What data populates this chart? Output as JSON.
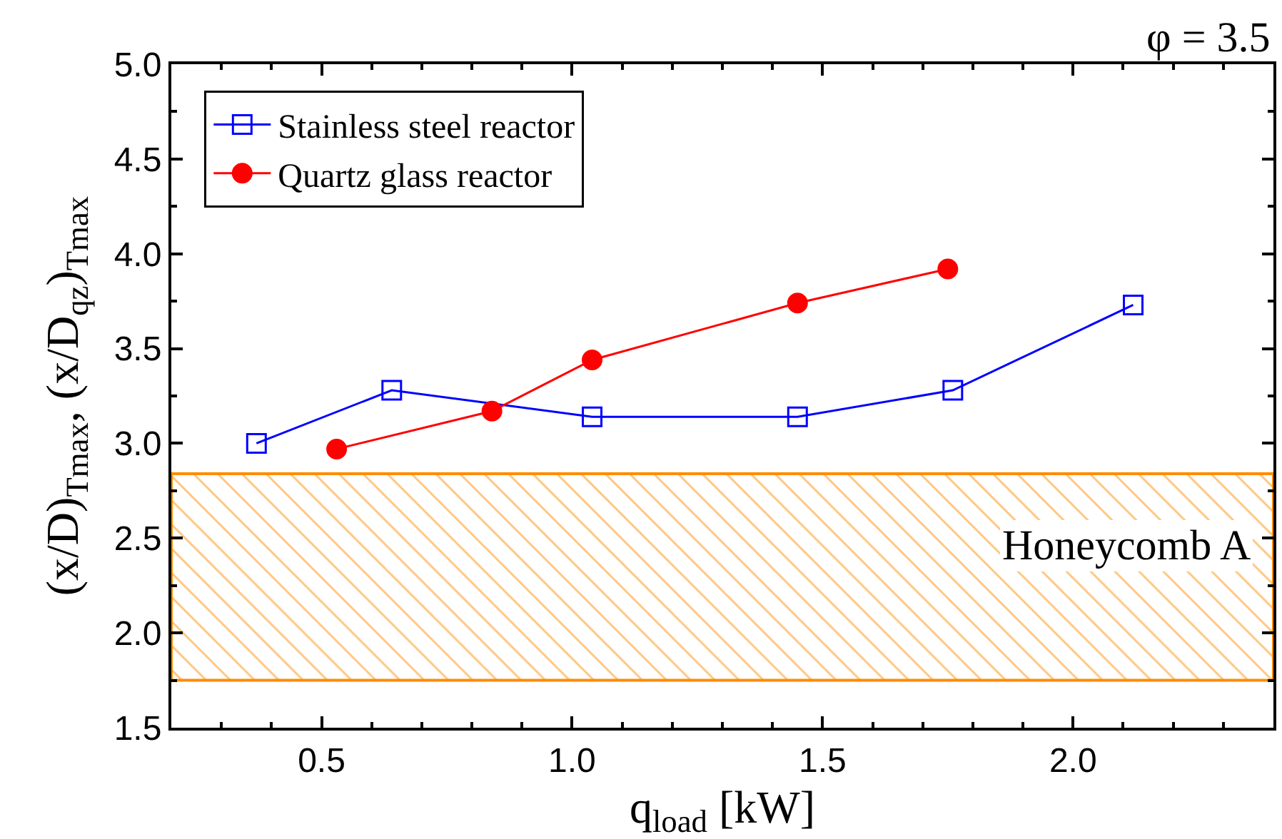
{
  "chart_data": {
    "type": "line",
    "xlabel": "q$_{load}$ [kW]",
    "ylabel": "(x/D)$_{Tmax}$, (x/D$_{qz}$)$_{Tmax}$",
    "annotations": [
      "φ = 3.5"
    ],
    "xlim": [
      0.2,
      2.4
    ],
    "xticks": [
      {
        "value": 0.5,
        "label": "0.5"
      },
      {
        "value": 1,
        "label": "1.0"
      },
      {
        "value": 1.5,
        "label": "1.5"
      },
      {
        "value": 2,
        "label": "2.0"
      }
    ],
    "ylim": [
      1.5,
      5.0
    ],
    "yticks": [
      {
        "value": 1.5,
        "label": "1.5"
      },
      {
        "value": 2,
        "label": "2.0"
      },
      {
        "value": 2.5,
        "label": "2.5"
      },
      {
        "value": 3,
        "label": "3.0"
      },
      {
        "value": 3.5,
        "label": "3.5"
      },
      {
        "value": 4,
        "label": "4.0"
      },
      {
        "value": 4.5,
        "label": "4.5"
      },
      {
        "value": 5,
        "label": "5.0"
      }
    ],
    "grid": false,
    "legend": "top left",
    "series": [
      {
        "name": "Stainless steel reactor",
        "color": "#0000ff",
        "marker": "square",
        "x": [
          0.37,
          0.64,
          1.04,
          1.45,
          1.76,
          2.12
        ],
        "values": [
          3.0,
          3.28,
          3.14,
          3.14,
          3.28,
          3.73
        ]
      },
      {
        "name": "Quartz glass reactor",
        "color": "#ff0000",
        "marker": "circle",
        "x": [
          0.53,
          0.84,
          1.04,
          1.45,
          1.75
        ],
        "values": [
          2.97,
          3.17,
          3.44,
          3.74,
          3.92
        ]
      }
    ],
    "bands": [
      {
        "axis": "y",
        "from": 1.75,
        "to": 2.84,
        "label": "Honeycomb A",
        "color": "#ff8c00"
      }
    ]
  }
}
